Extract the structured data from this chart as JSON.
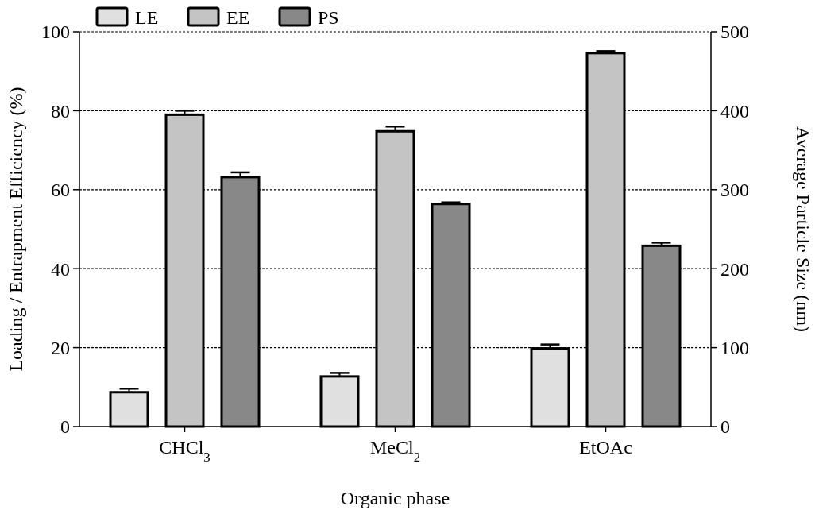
{
  "chart_data": {
    "type": "bar",
    "xlabel": "Organic phase",
    "ylabel": "Loading / Entrapment Efficiency (%)",
    "y2label": "Average Particle Size (nm)",
    "categories": [
      "CHCl$_{3}$",
      "MeCl$_{2}$",
      "EtOAc"
    ],
    "series": [
      {
        "name": "LE",
        "color": "#e0e0e0",
        "values": [
          8.7,
          12.7,
          19.8
        ],
        "errors": [
          0.9,
          0.9,
          1.0
        ]
      },
      {
        "name": "EE",
        "color": "#c4c4c4",
        "values": [
          79.0,
          74.8,
          94.6
        ],
        "errors": [
          1.0,
          1.2,
          0.5
        ]
      },
      {
        "name": "PS",
        "color": "#888888",
        "axis": "y2",
        "values": [
          316,
          282,
          229
        ],
        "errors": [
          6,
          2,
          4
        ]
      }
    ],
    "ylim": [
      0,
      100
    ],
    "yticks": [
      0,
      20,
      40,
      60,
      80,
      100
    ],
    "y2lim": [
      0,
      500
    ],
    "y2ticks": [
      0,
      100,
      200,
      300,
      400,
      500
    ],
    "grid": "y",
    "legend": "top left"
  }
}
